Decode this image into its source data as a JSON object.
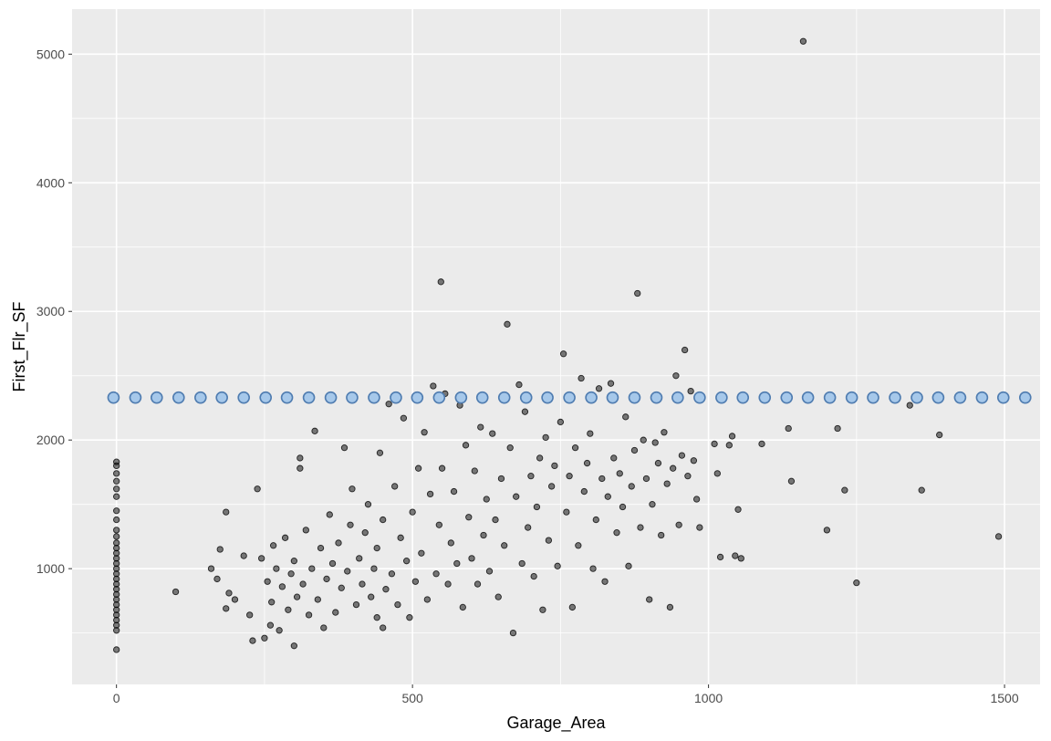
{
  "chart_data": {
    "type": "scatter",
    "xlabel": "Garage_Area",
    "ylabel": "First_Flr_SF",
    "xlim": [
      -75,
      1560
    ],
    "ylim": [
      100,
      5350
    ],
    "x_ticks": [
      0,
      500,
      1000,
      1500
    ],
    "x_tick_labels": [
      "0",
      "500",
      "1000",
      "1500"
    ],
    "y_ticks": [
      1000,
      2000,
      3000,
      4000,
      5000
    ],
    "y_tick_labels": [
      "1000",
      "2000",
      "3000",
      "4000",
      "5000"
    ],
    "grid": true,
    "legend": "none",
    "colors": {
      "panel_background": "#ebebeb",
      "grid_line": "#ffffff",
      "point_fill": "#000000",
      "point_fill_opacity": 0.5,
      "overlay_fill": "#a6c8ea",
      "overlay_stroke": "#4f7cb0"
    },
    "series": [
      {
        "type": "scatter",
        "points": [
          [
            0,
            370
          ],
          [
            0,
            520
          ],
          [
            0,
            560
          ],
          [
            0,
            600
          ],
          [
            0,
            640
          ],
          [
            0,
            680
          ],
          [
            0,
            720
          ],
          [
            0,
            760
          ],
          [
            0,
            800
          ],
          [
            0,
            840
          ],
          [
            0,
            880
          ],
          [
            0,
            920
          ],
          [
            0,
            960
          ],
          [
            0,
            1000
          ],
          [
            0,
            1040
          ],
          [
            0,
            1080
          ],
          [
            0,
            1120
          ],
          [
            0,
            1160
          ],
          [
            0,
            1200
          ],
          [
            0,
            1250
          ],
          [
            0,
            1300
          ],
          [
            0,
            1380
          ],
          [
            0,
            1450
          ],
          [
            0,
            1560
          ],
          [
            0,
            1620
          ],
          [
            0,
            1680
          ],
          [
            0,
            1740
          ],
          [
            0,
            1800
          ],
          [
            0,
            1830
          ],
          [
            100,
            820
          ],
          [
            160,
            1000
          ],
          [
            170,
            920
          ],
          [
            175,
            1150
          ],
          [
            185,
            690
          ],
          [
            185,
            1440
          ],
          [
            190,
            810
          ],
          [
            200,
            760
          ],
          [
            215,
            1100
          ],
          [
            225,
            640
          ],
          [
            230,
            440
          ],
          [
            238,
            1620
          ],
          [
            245,
            1080
          ],
          [
            250,
            460
          ],
          [
            255,
            900
          ],
          [
            260,
            560
          ],
          [
            262,
            740
          ],
          [
            265,
            1180
          ],
          [
            270,
            1000
          ],
          [
            275,
            520
          ],
          [
            280,
            860
          ],
          [
            285,
            1240
          ],
          [
            290,
            680
          ],
          [
            295,
            960
          ],
          [
            300,
            400
          ],
          [
            300,
            1060
          ],
          [
            305,
            780
          ],
          [
            310,
            1780
          ],
          [
            310,
            1860
          ],
          [
            315,
            880
          ],
          [
            320,
            1300
          ],
          [
            325,
            640
          ],
          [
            330,
            1000
          ],
          [
            335,
            2070
          ],
          [
            340,
            760
          ],
          [
            345,
            1160
          ],
          [
            350,
            540
          ],
          [
            355,
            920
          ],
          [
            360,
            1420
          ],
          [
            365,
            1040
          ],
          [
            370,
            660
          ],
          [
            375,
            1200
          ],
          [
            380,
            850
          ],
          [
            385,
            1940
          ],
          [
            390,
            980
          ],
          [
            395,
            1340
          ],
          [
            398,
            1620
          ],
          [
            405,
            720
          ],
          [
            410,
            1080
          ],
          [
            415,
            880
          ],
          [
            420,
            1280
          ],
          [
            425,
            1500
          ],
          [
            430,
            780
          ],
          [
            435,
            1000
          ],
          [
            440,
            620
          ],
          [
            440,
            1160
          ],
          [
            445,
            1900
          ],
          [
            450,
            540
          ],
          [
            450,
            1380
          ],
          [
            455,
            840
          ],
          [
            460,
            2280
          ],
          [
            465,
            960
          ],
          [
            470,
            1640
          ],
          [
            475,
            720
          ],
          [
            480,
            1240
          ],
          [
            485,
            2170
          ],
          [
            490,
            1060
          ],
          [
            495,
            620
          ],
          [
            500,
            1440
          ],
          [
            505,
            900
          ],
          [
            510,
            1780
          ],
          [
            515,
            1120
          ],
          [
            520,
            2060
          ],
          [
            525,
            760
          ],
          [
            530,
            1580
          ],
          [
            535,
            2420
          ],
          [
            540,
            960
          ],
          [
            545,
            1340
          ],
          [
            548,
            3230
          ],
          [
            550,
            1780
          ],
          [
            555,
            2360
          ],
          [
            560,
            880
          ],
          [
            565,
            1200
          ],
          [
            570,
            1600
          ],
          [
            575,
            1040
          ],
          [
            580,
            2270
          ],
          [
            585,
            700
          ],
          [
            590,
            1960
          ],
          [
            595,
            1400
          ],
          [
            600,
            1080
          ],
          [
            605,
            1760
          ],
          [
            610,
            880
          ],
          [
            615,
            2100
          ],
          [
            620,
            1260
          ],
          [
            625,
            1540
          ],
          [
            630,
            980
          ],
          [
            635,
            2050
          ],
          [
            640,
            1380
          ],
          [
            645,
            780
          ],
          [
            650,
            1700
          ],
          [
            655,
            1180
          ],
          [
            660,
            2900
          ],
          [
            665,
            1940
          ],
          [
            670,
            500
          ],
          [
            675,
            1560
          ],
          [
            680,
            2430
          ],
          [
            685,
            1040
          ],
          [
            690,
            2220
          ],
          [
            695,
            1320
          ],
          [
            700,
            1720
          ],
          [
            705,
            940
          ],
          [
            710,
            1480
          ],
          [
            715,
            1860
          ],
          [
            720,
            680
          ],
          [
            725,
            2020
          ],
          [
            730,
            1220
          ],
          [
            735,
            1640
          ],
          [
            740,
            1800
          ],
          [
            745,
            1020
          ],
          [
            750,
            2140
          ],
          [
            755,
            2670
          ],
          [
            760,
            1440
          ],
          [
            765,
            1720
          ],
          [
            770,
            700
          ],
          [
            775,
            1940
          ],
          [
            780,
            1180
          ],
          [
            785,
            2480
          ],
          [
            790,
            1600
          ],
          [
            795,
            1820
          ],
          [
            800,
            2050
          ],
          [
            805,
            1000
          ],
          [
            810,
            1380
          ],
          [
            815,
            2400
          ],
          [
            820,
            1700
          ],
          [
            825,
            900
          ],
          [
            830,
            1560
          ],
          [
            835,
            2440
          ],
          [
            840,
            1860
          ],
          [
            845,
            1280
          ],
          [
            850,
            1740
          ],
          [
            855,
            1480
          ],
          [
            860,
            2180
          ],
          [
            865,
            1020
          ],
          [
            870,
            1640
          ],
          [
            875,
            1920
          ],
          [
            880,
            3140
          ],
          [
            885,
            1320
          ],
          [
            890,
            2000
          ],
          [
            895,
            1700
          ],
          [
            900,
            760
          ],
          [
            905,
            1500
          ],
          [
            910,
            1980
          ],
          [
            915,
            1820
          ],
          [
            920,
            1260
          ],
          [
            925,
            2060
          ],
          [
            930,
            1660
          ],
          [
            935,
            700
          ],
          [
            940,
            1780
          ],
          [
            945,
            2500
          ],
          [
            950,
            1340
          ],
          [
            955,
            1880
          ],
          [
            960,
            2700
          ],
          [
            965,
            1720
          ],
          [
            970,
            2380
          ],
          [
            975,
            1840
          ],
          [
            980,
            1540
          ],
          [
            985,
            1320
          ],
          [
            1010,
            1970
          ],
          [
            1015,
            1740
          ],
          [
            1020,
            1090
          ],
          [
            1035,
            1960
          ],
          [
            1040,
            2030
          ],
          [
            1045,
            1100
          ],
          [
            1050,
            1460
          ],
          [
            1055,
            1080
          ],
          [
            1090,
            1970
          ],
          [
            1135,
            2090
          ],
          [
            1140,
            1680
          ],
          [
            1160,
            5100
          ],
          [
            1200,
            1300
          ],
          [
            1218,
            2090
          ],
          [
            1230,
            1610
          ],
          [
            1250,
            890
          ],
          [
            1340,
            2270
          ],
          [
            1360,
            1610
          ],
          [
            1390,
            2040
          ],
          [
            1490,
            1250
          ]
        ]
      },
      {
        "type": "scatter",
        "name": "",
        "y_value": 2330,
        "x_values": [
          -5,
          32,
          68,
          105,
          142,
          178,
          215,
          252,
          288,
          325,
          362,
          398,
          435,
          472,
          508,
          545,
          582,
          618,
          655,
          692,
          728,
          765,
          802,
          838,
          875,
          912,
          948,
          985,
          1022,
          1058,
          1095,
          1132,
          1168,
          1205,
          1242,
          1278,
          1315,
          1352,
          1388,
          1425,
          1462,
          1498,
          1535
        ]
      }
    ]
  }
}
